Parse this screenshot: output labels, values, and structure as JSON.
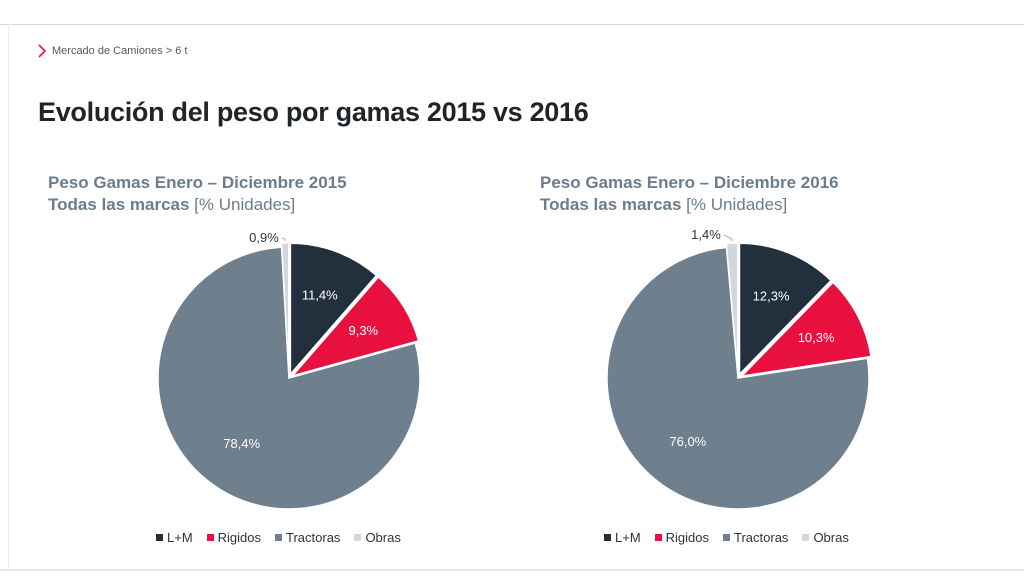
{
  "breadcrumb": {
    "text": "Mercado de Camiones > 6 t"
  },
  "page": {
    "title": "Evolución del peso por gamas 2015 vs 2016"
  },
  "chart_data": [
    {
      "type": "pie",
      "title_line1": "Peso Gamas Enero – Diciembre 2015",
      "title_line2": "Todas las marcas",
      "title_unit": "[% Unidades]",
      "categories": [
        "L+M",
        "Rigidos",
        "Tractoras",
        "Obras"
      ],
      "values": [
        11.4,
        9.3,
        78.4,
        0.9
      ],
      "labels": [
        "11,4%",
        "9,3%",
        "78,4%",
        "0,9%"
      ],
      "colors": [
        "#222f3d",
        "#e8103f",
        "#6e7f8d",
        "#d3d7db"
      ],
      "legend_position": "bottom"
    },
    {
      "type": "pie",
      "title_line1": "Peso Gamas Enero – Diciembre 2016",
      "title_line2": "Todas las marcas",
      "title_unit": "[% Unidades]",
      "categories": [
        "L+M",
        "Rigidos",
        "Tractoras",
        "Obras"
      ],
      "values": [
        12.3,
        10.3,
        76.0,
        1.4
      ],
      "labels": [
        "12,3%",
        "10,3%",
        "76,0%",
        "1,4%"
      ],
      "colors": [
        "#222f3d",
        "#e8103f",
        "#6e7f8d",
        "#d3d7db"
      ],
      "legend_position": "bottom"
    }
  ]
}
